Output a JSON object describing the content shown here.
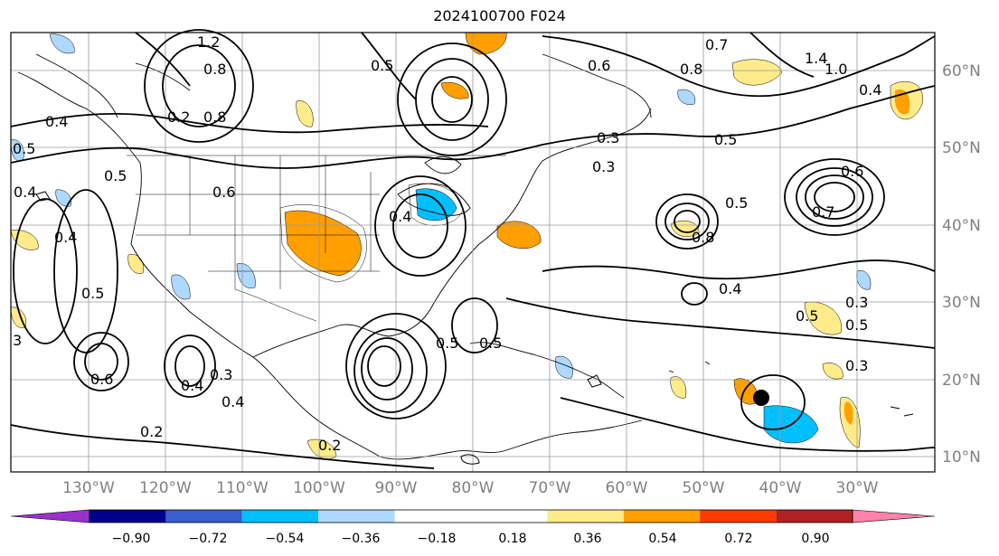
{
  "title": "2024100700 F024",
  "map": {
    "lon_labels": [
      "130°W",
      "120°W",
      "110°W",
      "100°W",
      "90°W",
      "80°W",
      "70°W",
      "60°W",
      "50°W",
      "40°W",
      "30°W"
    ],
    "lat_labels": [
      "60°N",
      "50°N",
      "40°N",
      "30°N",
      "20°N",
      "10°N"
    ],
    "contour_labels": [
      "1.2",
      "0.8",
      "0.4",
      "0.5",
      "0.6",
      "0.7",
      "0.8",
      "0.3",
      "0.5",
      "0.4",
      "0.3",
      "0.6",
      "0.5",
      "0.4",
      "0.2",
      "0.2",
      "0.3",
      "0.4",
      "0.5",
      "0.6",
      "0.7",
      "0.5",
      "0.3",
      "0.5",
      "0.4",
      "0.3",
      "1.4",
      "1.0",
      "0.4",
      "0.5",
      "3",
      "0.4",
      "0.5",
      "0.6",
      "0.5",
      "0.4",
      "0.5",
      "0.8",
      "0.8",
      "0.2"
    ],
    "colors": {
      "land_outline": "#000000",
      "grid": "#9a9a9a",
      "axis_label": "#808080"
    }
  },
  "colorbar": {
    "ticks": [
      "−0.90",
      "−0.72",
      "−0.54",
      "−0.36",
      "−0.18",
      "0.18",
      "0.36",
      "0.54",
      "0.72",
      "0.90"
    ],
    "colors": [
      "#9932cc",
      "#00008b",
      "#3a5fcd",
      "#00bfff",
      "#add8ff",
      "#ffffff",
      "#ffeb8a",
      "#ff9f00",
      "#ff3a00",
      "#b22222",
      "#ff82ab"
    ]
  }
}
